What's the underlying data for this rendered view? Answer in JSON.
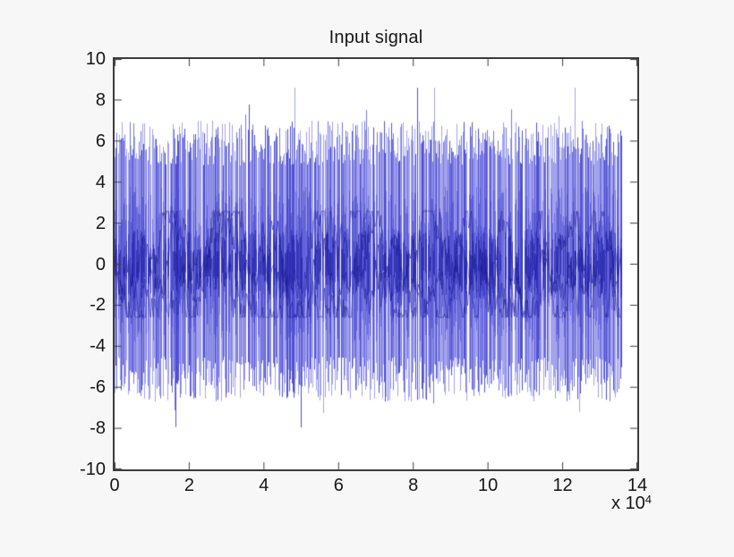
{
  "chart_data": {
    "type": "line",
    "title": "Input signal",
    "xlabel": "",
    "ylabel": "",
    "x_tick_labels": [
      "0",
      "2",
      "4",
      "6",
      "8",
      "10",
      "12",
      "14"
    ],
    "x_tick_values": [
      0,
      2,
      4,
      6,
      8,
      10,
      12,
      14
    ],
    "x_axis_multiplier_prefix": "x 10",
    "x_axis_multiplier_exponent": "4",
    "y_tick_labels": [
      "10",
      "8",
      "6",
      "4",
      "2",
      "0",
      "-2",
      "-4",
      "-6",
      "-8",
      "-10"
    ],
    "y_tick_values": [
      10,
      8,
      6,
      4,
      2,
      0,
      -2,
      -4,
      -6,
      -8,
      -10
    ],
    "xlim": [
      0,
      140000
    ],
    "ylim": [
      -10,
      10
    ],
    "grid": false,
    "legend": false,
    "axis_color": "#3d3d3d",
    "plot_background": "#ffffff",
    "figure_background": "#f7f7f7",
    "series": [
      {
        "name": "input signal",
        "line_color": "#0000ff",
        "description": "dense zero-mean noise waveform filling the axes",
        "n_samples": 136000,
        "x_range": [
          0,
          136000
        ],
        "mean": 0,
        "typical_peak_envelope": [
          -6.5,
          6.8
        ],
        "observed_min": -8.6,
        "observed_max": 8.6
      }
    ]
  }
}
